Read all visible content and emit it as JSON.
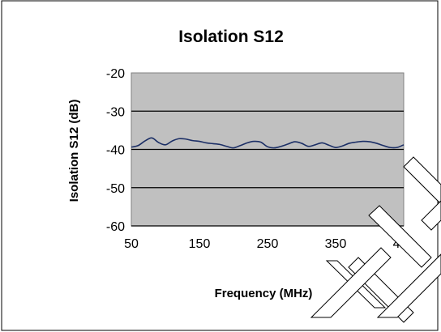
{
  "chart_data": {
    "type": "line",
    "title": "Isolation S12",
    "xlabel": "Frequency (MHz)",
    "ylabel": "Isolation S12 (dB)",
    "xlim": [
      50,
      450
    ],
    "ylim": [
      -60,
      -20
    ],
    "x_ticks": [
      50,
      150,
      250,
      350,
      450
    ],
    "y_ticks": [
      -20,
      -30,
      -40,
      -50,
      -60
    ],
    "grid": "horizontal",
    "legend": "none",
    "series": [
      {
        "x": [
          50,
          60,
          70,
          80,
          90,
          100,
          110,
          120,
          130,
          140,
          150,
          160,
          170,
          180,
          190,
          200,
          210,
          220,
          230,
          240,
          250,
          260,
          270,
          280,
          290,
          300,
          310,
          320,
          330,
          340,
          350,
          360,
          370,
          380,
          390,
          400,
          410,
          420,
          430,
          440,
          450
        ],
        "y": [
          -39.4,
          -39.0,
          -37.8,
          -37.0,
          -38.2,
          -38.8,
          -37.8,
          -37.2,
          -37.3,
          -37.7,
          -37.9,
          -38.3,
          -38.5,
          -38.7,
          -39.2,
          -39.6,
          -39.0,
          -38.3,
          -37.9,
          -38.1,
          -39.3,
          -39.6,
          -39.2,
          -38.6,
          -38.0,
          -38.4,
          -39.2,
          -38.8,
          -38.3,
          -38.9,
          -39.5,
          -39.1,
          -38.4,
          -38.1,
          -37.9,
          -38.0,
          -38.4,
          -39.0,
          -39.5,
          -39.5,
          -38.8
        ]
      }
    ],
    "colors": {
      "line": "#1c2f66",
      "plot_bg": "#c0c0c0",
      "grid": "#000000",
      "frame": "#808080"
    }
  }
}
